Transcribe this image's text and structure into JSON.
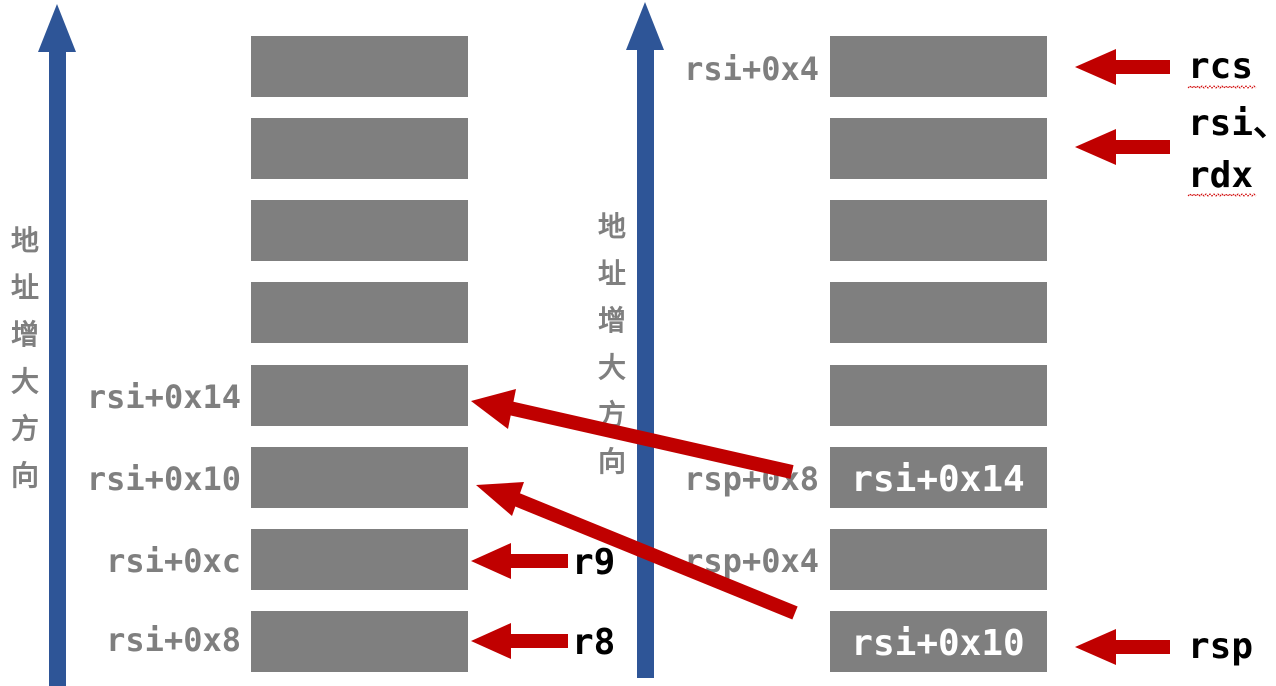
{
  "axis_label": "地址增大方向",
  "left_stack": {
    "labels": [
      "rsi+0x14",
      "rsi+0x10",
      "rsi+0xc",
      "rsi+0x8"
    ],
    "pointers": [
      "r9",
      "r8"
    ]
  },
  "right_stack": {
    "labels": [
      "rsi+0x4",
      "rsp+0x8",
      "rsp+0x4"
    ],
    "cells": [
      "rsi+0x14",
      "rsi+0x10"
    ],
    "pointers": [
      "rcs",
      "rsi、",
      "rdx",
      "rsp"
    ]
  },
  "colors": {
    "axis": "#2e5597",
    "arrow": "#c00000",
    "box": "#7f7f7f",
    "label": "#7f7f7f"
  }
}
